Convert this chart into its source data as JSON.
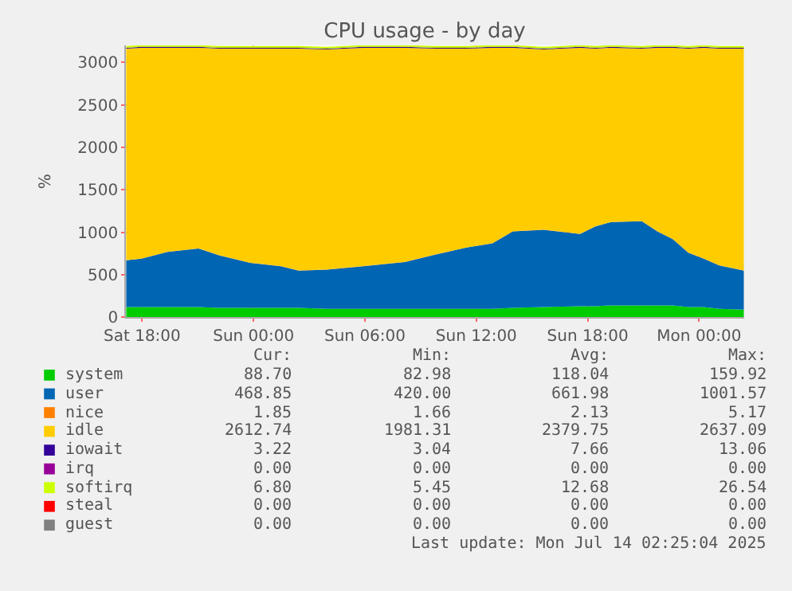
{
  "chart_data": {
    "type": "area",
    "title": "CPU usage - by day",
    "ylabel": "%",
    "stacked": true,
    "grid": true,
    "legend": "bottom",
    "x": [
      "2025-07-12T17:08",
      "2025-07-12T17:58",
      "2025-07-12T19:22",
      "2025-07-12T21:02",
      "2025-07-12T22:08",
      "2025-07-12T23:49",
      "2025-07-13T01:28",
      "2025-07-13T02:26",
      "2025-07-13T03:58",
      "2025-07-13T05:55",
      "2025-07-13T08:08",
      "2025-07-13T09:49",
      "2025-07-13T11:28",
      "2025-07-13T12:52",
      "2025-07-13T13:58",
      "2025-07-13T15:38",
      "2025-07-13T17:35",
      "2025-07-13T18:25",
      "2025-07-13T19:15",
      "2025-07-13T20:55",
      "2025-07-13T21:45",
      "2025-07-13T22:35",
      "2025-07-13T23:25",
      "2025-07-14T00:15",
      "2025-07-14T01:05",
      "2025-07-14T02:25"
    ],
    "xlim": [
      "2025-07-12T17:08",
      "2025-07-14T02:25"
    ],
    "xticks": [
      {
        "value": "2025-07-12T18:00",
        "label": "Sat 18:00"
      },
      {
        "value": "2025-07-13T00:00",
        "label": "Sun 00:00"
      },
      {
        "value": "2025-07-13T06:00",
        "label": "Sun 06:00"
      },
      {
        "value": "2025-07-13T12:00",
        "label": "Sun 12:00"
      },
      {
        "value": "2025-07-13T18:00",
        "label": "Sun 18:00"
      },
      {
        "value": "2025-07-14T00:00",
        "label": "Mon 00:00"
      }
    ],
    "ylim": [
      0,
      3200
    ],
    "yticks": [
      0,
      500,
      1000,
      1500,
      2000,
      2500,
      3000
    ],
    "series": [
      {
        "name": "system",
        "color": "#00cc00",
        "values": [
          120,
          120,
          120,
          120,
          110,
          110,
          110,
          110,
          100,
          100,
          100,
          100,
          100,
          100,
          110,
          120,
          130,
          130,
          140,
          140,
          140,
          140,
          120,
          120,
          100,
          90
        ]
      },
      {
        "name": "user",
        "color": "#0066b3",
        "values": [
          550,
          570,
          650,
          690,
          620,
          530,
          490,
          440,
          460,
          500,
          550,
          640,
          720,
          770,
          900,
          910,
          850,
          940,
          980,
          990,
          870,
          780,
          640,
          570,
          510,
          460
        ]
      },
      {
        "name": "nice",
        "color": "#ff8000",
        "values": [
          2,
          2,
          2,
          2,
          2,
          2,
          2,
          2,
          2,
          2,
          2,
          2,
          2,
          2,
          2,
          2,
          2,
          2,
          2,
          2,
          2,
          2,
          2,
          2,
          2,
          2
        ]
      },
      {
        "name": "idle",
        "color": "#ffcc00",
        "values": [
          2490,
          2480,
          2400,
          2360,
          2430,
          2520,
          2560,
          2610,
          2590,
          2570,
          2520,
          2420,
          2340,
          2300,
          2160,
          2120,
          2190,
          2090,
          2050,
          2030,
          2160,
          2250,
          2400,
          2480,
          2550,
          2610
        ]
      },
      {
        "name": "iowait",
        "color": "#330099",
        "values": [
          10,
          10,
          10,
          10,
          10,
          10,
          10,
          10,
          10,
          10,
          10,
          10,
          10,
          10,
          10,
          10,
          10,
          10,
          10,
          10,
          10,
          10,
          10,
          10,
          10,
          10
        ]
      },
      {
        "name": "irq",
        "color": "#990099",
        "values": [
          null,
          null,
          null,
          null,
          null,
          null,
          null,
          null,
          null,
          null,
          null,
          null,
          null,
          null,
          null,
          null,
          null,
          null,
          null,
          null,
          null,
          null,
          null,
          null,
          null,
          null
        ]
      },
      {
        "name": "softirq",
        "color": "#ccff00",
        "values": [
          20,
          20,
          20,
          20,
          20,
          20,
          20,
          20,
          20,
          20,
          20,
          20,
          20,
          20,
          20,
          20,
          20,
          20,
          20,
          20,
          20,
          20,
          20,
          20,
          20,
          20
        ]
      },
      {
        "name": "steal",
        "color": "#ff0000",
        "values": [
          null,
          null,
          null,
          null,
          null,
          null,
          null,
          null,
          null,
          null,
          null,
          null,
          null,
          null,
          null,
          null,
          null,
          null,
          null,
          null,
          null,
          null,
          null,
          null,
          null,
          null
        ]
      },
      {
        "name": "guest",
        "color": "#808080",
        "values": [
          null,
          null,
          null,
          null,
          null,
          null,
          null,
          null,
          null,
          null,
          null,
          null,
          null,
          null,
          null,
          null,
          null,
          null,
          null,
          null,
          null,
          null,
          null,
          null,
          null,
          null
        ]
      }
    ],
    "annotations": [
      "Cur:",
      "Min:",
      "Avg:",
      "Max:",
      "88.70",
      "82.98",
      "118.04",
      "159.92",
      "468.85",
      "420.00",
      "661.98",
      "1001.57",
      "1.85",
      "1.66",
      "2.13",
      "5.17",
      "2612.74",
      "1981.31",
      "2379.75",
      "2637.09",
      "3.22",
      "3.04",
      "7.66",
      "13.06",
      "0.00",
      "0.00",
      "0.00",
      "0.00",
      "6.80",
      "5.45",
      "12.68",
      "26.54",
      "0.00",
      "0.00",
      "0.00",
      "0.00",
      "0.00",
      "0.00",
      "0.00",
      "0.00",
      "Last update: Mon Jul 14 02:25:04 2025"
    ]
  }
}
